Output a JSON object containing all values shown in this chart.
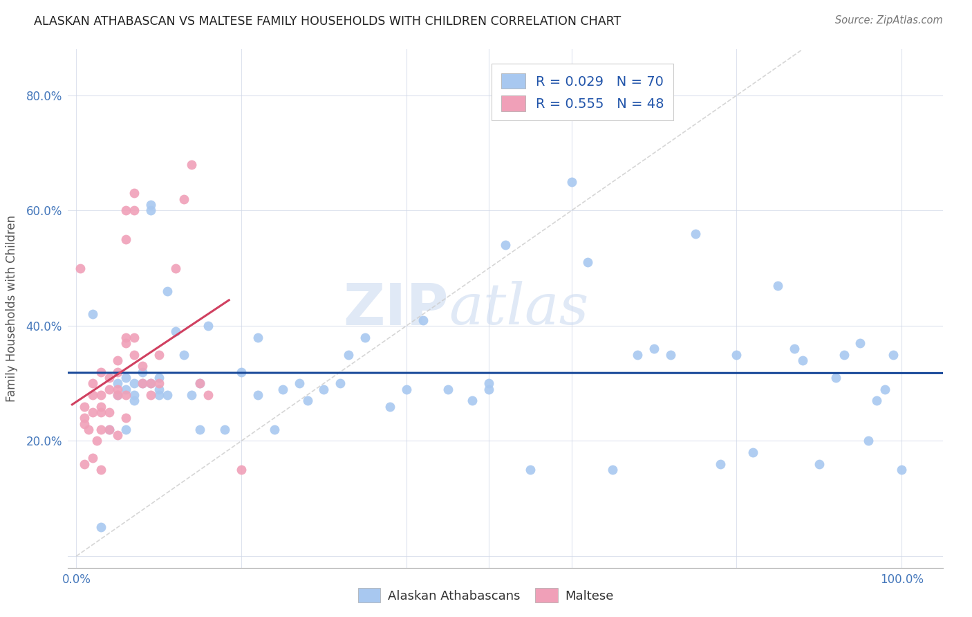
{
  "title": "ALASKAN ATHABASCAN VS MALTESE FAMILY HOUSEHOLDS WITH CHILDREN CORRELATION CHART",
  "source": "Source: ZipAtlas.com",
  "ylabel": "Family Households with Children",
  "legend_labels": [
    "Alaskan Athabascans",
    "Maltese"
  ],
  "legend_R": [
    0.029,
    0.555
  ],
  "legend_N": [
    70,
    48
  ],
  "blue_color": "#A8C8F0",
  "pink_color": "#F0A0B8",
  "blue_line_color": "#1A4A9A",
  "pink_line_color": "#D04060",
  "diagonal_color": "#CCCCCC",
  "blue_scatter_x": [
    0.03,
    0.04,
    0.05,
    0.05,
    0.06,
    0.06,
    0.07,
    0.07,
    0.07,
    0.08,
    0.08,
    0.09,
    0.09,
    0.09,
    0.1,
    0.1,
    0.1,
    0.11,
    0.11,
    0.12,
    0.13,
    0.14,
    0.15,
    0.15,
    0.16,
    0.18,
    0.2,
    0.22,
    0.22,
    0.24,
    0.25,
    0.27,
    0.28,
    0.3,
    0.32,
    0.33,
    0.35,
    0.38,
    0.4,
    0.42,
    0.45,
    0.48,
    0.5,
    0.5,
    0.52,
    0.55,
    0.6,
    0.62,
    0.65,
    0.68,
    0.7,
    0.72,
    0.75,
    0.78,
    0.8,
    0.82,
    0.85,
    0.87,
    0.88,
    0.9,
    0.92,
    0.93,
    0.95,
    0.96,
    0.97,
    0.98,
    0.99,
    1.0,
    0.02,
    0.06
  ],
  "blue_scatter_y": [
    0.05,
    0.22,
    0.3,
    0.28,
    0.31,
    0.29,
    0.27,
    0.3,
    0.28,
    0.3,
    0.32,
    0.61,
    0.6,
    0.3,
    0.29,
    0.31,
    0.28,
    0.46,
    0.28,
    0.39,
    0.35,
    0.28,
    0.22,
    0.3,
    0.4,
    0.22,
    0.32,
    0.28,
    0.38,
    0.22,
    0.29,
    0.3,
    0.27,
    0.29,
    0.3,
    0.35,
    0.38,
    0.26,
    0.29,
    0.41,
    0.29,
    0.27,
    0.29,
    0.3,
    0.54,
    0.15,
    0.65,
    0.51,
    0.15,
    0.35,
    0.36,
    0.35,
    0.56,
    0.16,
    0.35,
    0.18,
    0.47,
    0.36,
    0.34,
    0.16,
    0.31,
    0.35,
    0.37,
    0.2,
    0.27,
    0.29,
    0.35,
    0.15,
    0.42,
    0.22
  ],
  "pink_scatter_x": [
    0.005,
    0.01,
    0.01,
    0.01,
    0.015,
    0.02,
    0.02,
    0.02,
    0.02,
    0.025,
    0.03,
    0.03,
    0.03,
    0.03,
    0.03,
    0.03,
    0.04,
    0.04,
    0.04,
    0.04,
    0.05,
    0.05,
    0.05,
    0.05,
    0.05,
    0.06,
    0.06,
    0.06,
    0.06,
    0.06,
    0.06,
    0.07,
    0.07,
    0.07,
    0.07,
    0.08,
    0.08,
    0.09,
    0.09,
    0.1,
    0.1,
    0.12,
    0.13,
    0.14,
    0.15,
    0.16,
    0.2,
    0.01
  ],
  "pink_scatter_y": [
    0.5,
    0.23,
    0.24,
    0.16,
    0.22,
    0.3,
    0.28,
    0.25,
    0.17,
    0.2,
    0.32,
    0.28,
    0.26,
    0.25,
    0.22,
    0.15,
    0.31,
    0.29,
    0.25,
    0.22,
    0.34,
    0.32,
    0.29,
    0.28,
    0.21,
    0.6,
    0.55,
    0.38,
    0.37,
    0.28,
    0.24,
    0.63,
    0.6,
    0.38,
    0.35,
    0.33,
    0.3,
    0.3,
    0.28,
    0.35,
    0.3,
    0.5,
    0.62,
    0.68,
    0.3,
    0.28,
    0.15,
    0.26
  ],
  "xlim": [
    -0.01,
    1.05
  ],
  "ylim": [
    -0.02,
    0.88
  ],
  "xticks": [
    0.0,
    0.2,
    0.4,
    0.5,
    0.6,
    0.8,
    1.0
  ],
  "yticks": [
    0.0,
    0.2,
    0.4,
    0.6,
    0.8
  ],
  "pink_line_x_end": 0.185
}
